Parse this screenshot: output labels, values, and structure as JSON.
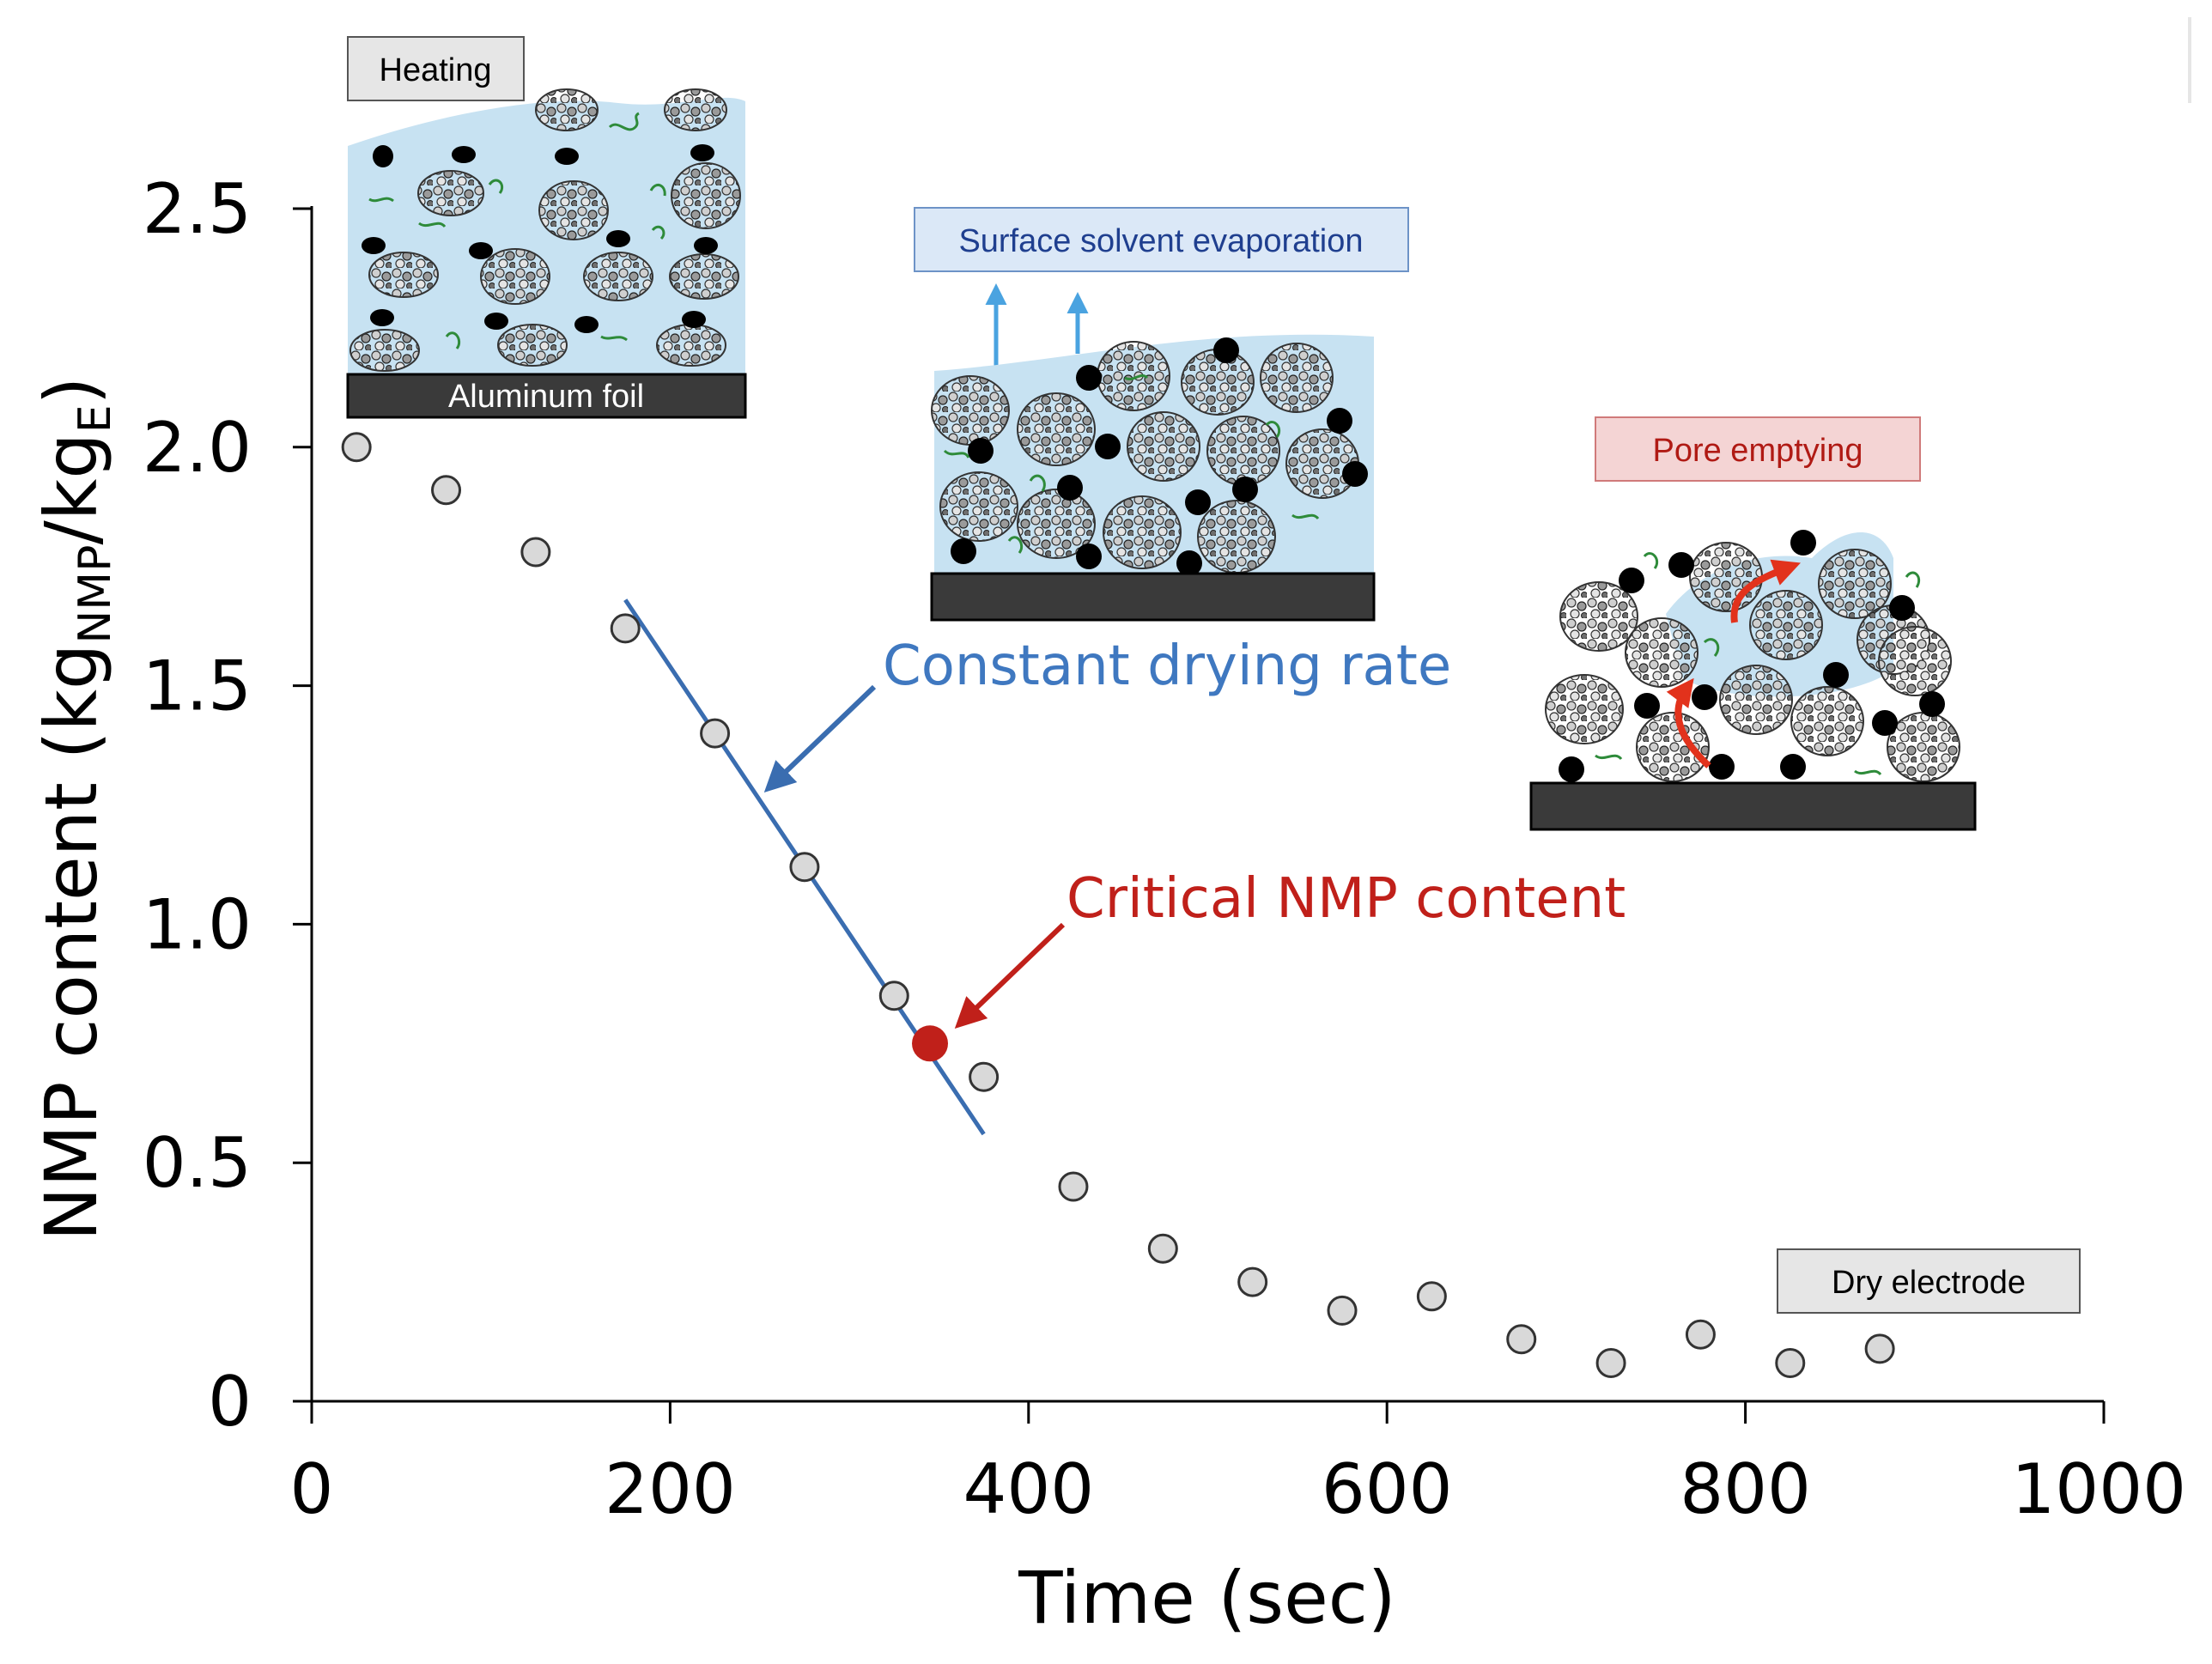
{
  "colors": {
    "axis": "#000000",
    "point_fill": "#d9d9d9",
    "point_stroke": "#333333",
    "fit_line": "#3a6db0",
    "critical": "#c0201a",
    "constant_text": "#3f78c0",
    "solvent": "#c7e2f2",
    "foil": "#3a3a3a",
    "binder": "#2e8b3a",
    "evap_arrow": "#4aa3e0",
    "pore_arrow": "#e2321c",
    "gray_box": "#e6e6e6",
    "blue_box": "#dbe8f7",
    "red_box": "#f4d4d4"
  },
  "chart_data": {
    "type": "scatter",
    "title": "",
    "xlabel": "Time (sec)",
    "ylabel_main": "NMP content (kg",
    "ylabel_sub1": "NMP",
    "ylabel_mid": "/kg",
    "ylabel_sub2": "E",
    "ylabel_end": ")",
    "xlim": [
      0,
      1000
    ],
    "ylim": [
      0,
      2.5
    ],
    "xticks": [
      0,
      200,
      400,
      600,
      800,
      1000
    ],
    "xtick_labels": [
      "0",
      "200",
      "400",
      "600",
      "800",
      "1000"
    ],
    "yticks": [
      0,
      0.5,
      1.0,
      1.5,
      2.0,
      2.5
    ],
    "ytick_labels": [
      "0",
      "0.5",
      "1.0",
      "1.5",
      "2.0",
      "2.5"
    ],
    "series": [
      {
        "name": "NMP content",
        "x": [
          25,
          75,
          125,
          175,
          225,
          275,
          325,
          375,
          425,
          475,
          525,
          575,
          625,
          675,
          725,
          775,
          825,
          875
        ],
        "y": [
          2.0,
          1.91,
          1.78,
          1.62,
          1.4,
          1.12,
          0.85,
          0.68,
          0.45,
          0.32,
          0.25,
          0.19,
          0.22,
          0.13,
          0.08,
          0.14,
          0.08,
          0.11
        ]
      }
    ],
    "fit_line": {
      "name": "Constant drying rate",
      "x": [
        175,
        375
      ],
      "y": [
        1.68,
        0.56
      ]
    },
    "critical_point": {
      "name": "Critical NMP content",
      "x": 345,
      "y": 0.75
    },
    "annotations": {
      "constant_rate": "Constant drying rate",
      "critical": "Critical NMP content"
    }
  },
  "panels": {
    "heating_label": "Heating",
    "foil_label": "Aluminum foil",
    "evaporation_label": "Surface solvent evaporation",
    "pore_label": "Pore emptying",
    "dry_label": "Dry electrode"
  }
}
